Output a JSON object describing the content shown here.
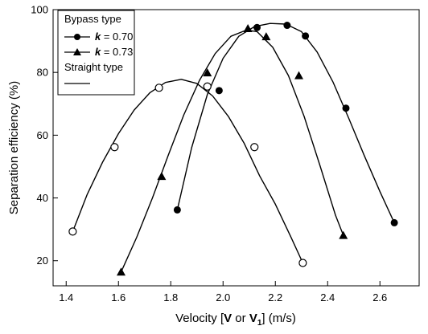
{
  "chart_data": {
    "type": "scatter",
    "title": "",
    "xlabel_parts": [
      "Velocity [",
      "V",
      " or ",
      "V",
      "1",
      "] (m/s)"
    ],
    "ylabel": "Separation efficiency (%)",
    "xlim": [
      1.35,
      2.75
    ],
    "ylim": [
      12,
      100
    ],
    "xticks": [
      1.4,
      1.6,
      1.8,
      2.0,
      2.2,
      2.4,
      2.6
    ],
    "xtick_labels": [
      "1.4",
      "1.6",
      "1.8",
      "2.0",
      "2.2",
      "2.4",
      "2.6"
    ],
    "yticks": [
      20,
      40,
      60,
      80,
      100
    ],
    "ytick_labels": [
      "20",
      "40",
      "60",
      "80",
      "100"
    ],
    "grid": false,
    "legend_position": "top-left",
    "legend": {
      "group1_title": "Bypass type",
      "group2_title": "Straight type",
      "k_symbol": "k",
      "entries_suffix": [
        " = 0.70",
        " = 0.73"
      ]
    },
    "series": [
      {
        "name": "k = 0.70",
        "group": "Bypass type",
        "marker": "filled-circle",
        "points": [
          [
            1.825,
            36.2
          ],
          [
            1.985,
            74.2
          ],
          [
            2.13,
            94.3
          ],
          [
            2.245,
            95.0
          ],
          [
            2.315,
            91.6
          ],
          [
            2.47,
            68.6
          ],
          [
            2.655,
            32.1
          ]
        ],
        "curve": [
          [
            1.825,
            36.2
          ],
          [
            1.88,
            56
          ],
          [
            1.94,
            73
          ],
          [
            2.0,
            84.5
          ],
          [
            2.06,
            91.5
          ],
          [
            2.12,
            94.6
          ],
          [
            2.18,
            95.6
          ],
          [
            2.24,
            95.4
          ],
          [
            2.3,
            93.0
          ],
          [
            2.36,
            86.5
          ],
          [
            2.42,
            77.0
          ],
          [
            2.48,
            65.5
          ],
          [
            2.54,
            53.5
          ],
          [
            2.6,
            42.0
          ],
          [
            2.655,
            32.1
          ]
        ]
      },
      {
        "name": "k = 0.73",
        "group": "Bypass type",
        "marker": "filled-triangle",
        "points": [
          [
            1.61,
            16.4
          ],
          [
            1.765,
            46.9
          ],
          [
            1.94,
            79.9
          ],
          [
            2.095,
            94.0
          ],
          [
            2.165,
            91.4
          ],
          [
            2.29,
            79.0
          ],
          [
            2.46,
            28.1
          ]
        ],
        "curve": [
          [
            1.61,
            16.4
          ],
          [
            1.67,
            27.5
          ],
          [
            1.73,
            40.0
          ],
          [
            1.79,
            53.5
          ],
          [
            1.85,
            66.5
          ],
          [
            1.91,
            77.5
          ],
          [
            1.97,
            86.0
          ],
          [
            2.03,
            91.5
          ],
          [
            2.09,
            93.5
          ],
          [
            2.13,
            93.0
          ],
          [
            2.19,
            88.0
          ],
          [
            2.25,
            79.0
          ],
          [
            2.31,
            66.0
          ],
          [
            2.37,
            50.5
          ],
          [
            2.43,
            34.5
          ],
          [
            2.46,
            28.1
          ]
        ]
      },
      {
        "name": "Straight type",
        "group": "Straight type",
        "marker": "open-circle",
        "points": [
          [
            1.425,
            29.3
          ],
          [
            1.585,
            56.2
          ],
          [
            1.755,
            75.1
          ],
          [
            1.94,
            75.5
          ],
          [
            2.12,
            56.2
          ],
          [
            2.305,
            19.3
          ]
        ],
        "curve": [
          [
            1.425,
            29.3
          ],
          [
            1.48,
            41.0
          ],
          [
            1.54,
            51.5
          ],
          [
            1.6,
            60.5
          ],
          [
            1.66,
            68.0
          ],
          [
            1.72,
            73.5
          ],
          [
            1.78,
            76.8
          ],
          [
            1.84,
            77.8
          ],
          [
            1.9,
            76.5
          ],
          [
            1.96,
            72.5
          ],
          [
            2.02,
            66.0
          ],
          [
            2.08,
            57.5
          ],
          [
            2.14,
            47.0
          ],
          [
            2.2,
            38.0
          ],
          [
            2.26,
            27.5
          ],
          [
            2.305,
            19.3
          ]
        ]
      }
    ]
  }
}
